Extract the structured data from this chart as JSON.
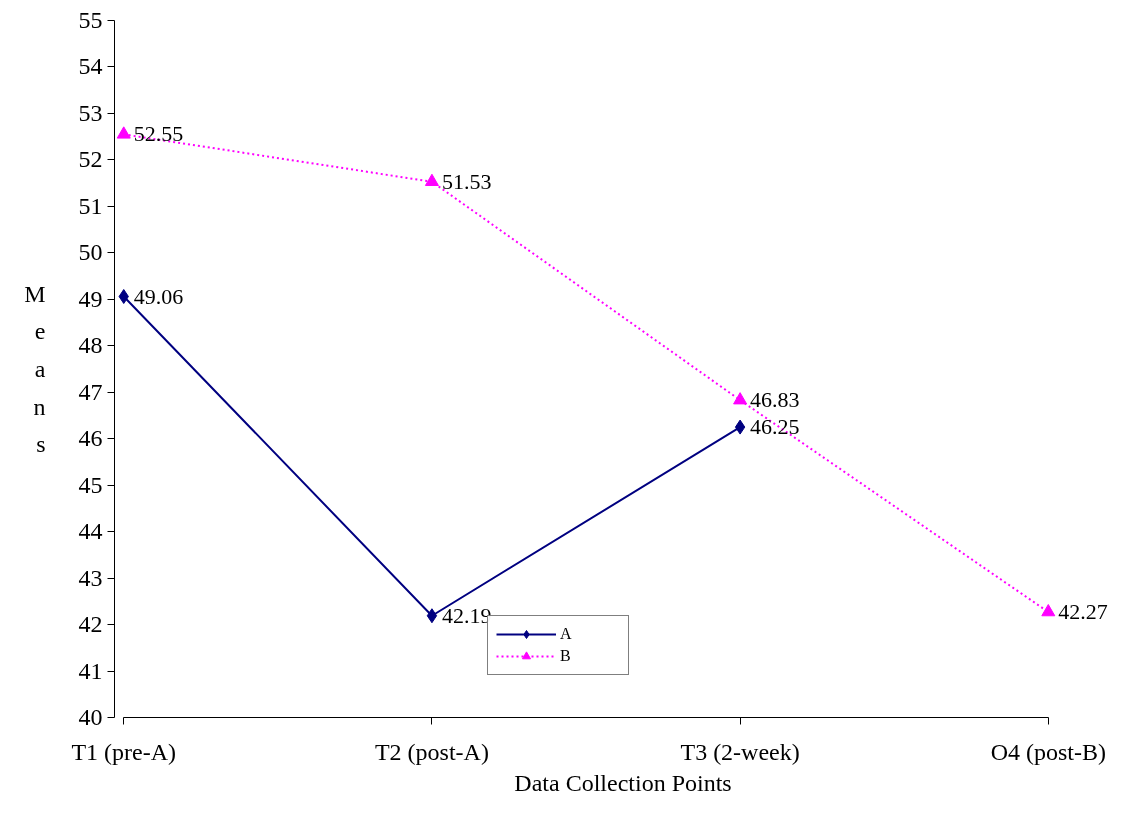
{
  "chart_data": {
    "type": "line",
    "xlabel": "Data Collection Points",
    "ylabel": "Means",
    "categories": [
      "T1 (pre-A)",
      "T2 (post-A)",
      "T3 (2-week)",
      "O4 (post-B)"
    ],
    "series": [
      {
        "name": "A",
        "color": "#000080",
        "marker": "diamond",
        "line_style": "solid",
        "values": [
          49.06,
          42.19,
          46.25,
          null
        ]
      },
      {
        "name": "B",
        "color": "#ff00ff",
        "marker": "triangle",
        "line_style": "dotted",
        "values": [
          52.55,
          51.53,
          46.83,
          42.27
        ]
      }
    ],
    "ylim": [
      40,
      55
    ],
    "yticks": [
      40,
      41,
      42,
      43,
      44,
      45,
      46,
      47,
      48,
      49,
      50,
      51,
      52,
      53,
      54,
      55
    ],
    "data_labels": true,
    "grid": false,
    "legend": "bottom"
  }
}
